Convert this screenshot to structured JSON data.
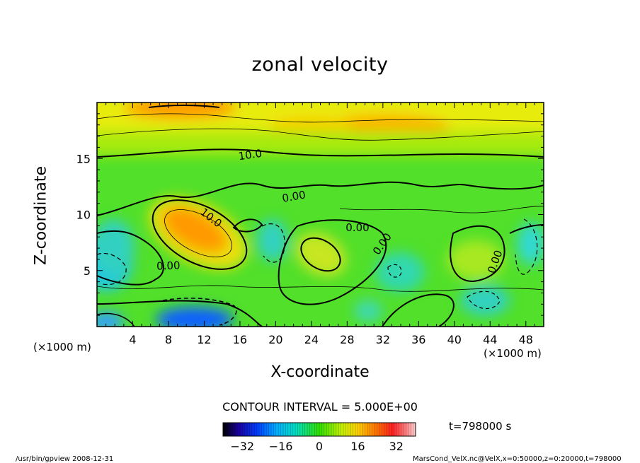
{
  "chart_data": {
    "type": "heatmap",
    "title": "zonal velocity",
    "xlabel": "X-coordinate",
    "ylabel": "Z-coordinate",
    "x_unit_left": "(×1000 m)",
    "x_unit_right": "(×1000 m)",
    "xlim": [
      0,
      50
    ],
    "ylim": [
      0,
      20
    ],
    "x_ticks": [
      4,
      8,
      12,
      16,
      20,
      24,
      28,
      32,
      36,
      40,
      44,
      48
    ],
    "y_ticks": [
      5,
      10,
      15
    ],
    "contour_labels": [
      "10.0",
      "0.00",
      "10.0",
      "0.00",
      "0.00",
      "0.00",
      "0.00"
    ],
    "contour_interval": "CONTOUR INTERVAL = 5.000E+00",
    "colorbar": {
      "range": [
        -40,
        40
      ],
      "ticks": [
        -32,
        -16,
        0,
        16,
        32
      ]
    },
    "time": "t=798000 s",
    "footer_left": "/usr/bin/gpview   2008-12-31",
    "footer_right": "MarsCond_VelX.nc@VelX,x=0:50000,z=0:20000,t=798000"
  }
}
